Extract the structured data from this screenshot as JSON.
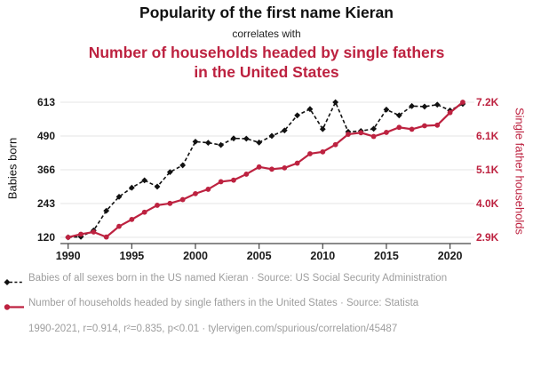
{
  "header": {
    "title_black": "Popularity of the first name Kieran",
    "connector": "correlates with",
    "title_red": "Number of households headed by single fathers in the United States"
  },
  "colors": {
    "red": "#bd2240",
    "black": "#111111",
    "gray_text": "#9e9e9e",
    "grid": "#e4e4e4",
    "axis": "#444444"
  },
  "chart_data": {
    "type": "line",
    "x_label_years": [
      "1990",
      "1995",
      "2000",
      "2005",
      "2010",
      "2015",
      "2020"
    ],
    "x": [
      1990,
      1991,
      1992,
      1993,
      1994,
      1995,
      1996,
      1997,
      1998,
      1999,
      2000,
      2001,
      2002,
      2003,
      2004,
      2005,
      2006,
      2007,
      2008,
      2009,
      2010,
      2011,
      2012,
      2013,
      2014,
      2015,
      2016,
      2017,
      2018,
      2019,
      2020,
      2021
    ],
    "series": [
      {
        "name": "Babies of all sexes born in the US named Kieran",
        "axis": "left",
        "style": "dashed-diamond",
        "color": "#111111",
        "values": [
          120,
          122,
          145,
          217,
          268,
          301,
          328,
          305,
          358,
          383,
          469,
          465,
          457,
          481,
          480,
          466,
          490,
          510,
          565,
          588,
          515,
          613,
          505,
          508,
          516,
          586,
          565,
          599,
          597,
          604,
          583,
          607
        ]
      },
      {
        "name": "Number of households headed by single fathers in the United States",
        "axis": "right",
        "style": "solid-circle",
        "color": "#bd2240",
        "values": [
          2900,
          3000,
          3070,
          2910,
          3250,
          3470,
          3700,
          3920,
          3980,
          4100,
          4290,
          4430,
          4670,
          4720,
          4910,
          5140,
          5070,
          5110,
          5260,
          5560,
          5620,
          5850,
          6180,
          6230,
          6110,
          6240,
          6400,
          6340,
          6450,
          6470,
          6870,
          7200
        ]
      }
    ],
    "left_axis": {
      "label": "Babies born",
      "tick_labels": [
        "120",
        "243",
        "366",
        "490",
        "613"
      ],
      "range": [
        120,
        613
      ]
    },
    "right_axis": {
      "label": "Single father households",
      "tick_labels": [
        "2.9K",
        "4.0K",
        "5.1K",
        "6.1K",
        "7.2K"
      ],
      "range": [
        2900,
        7200
      ]
    },
    "x_axis": {
      "ticks": [
        1990,
        1995,
        2000,
        2005,
        2010,
        2015,
        2020
      ],
      "range": [
        1990,
        2021
      ]
    },
    "grid": true,
    "legend_position": "bottom"
  },
  "legend": {
    "items": [
      {
        "text": "Babies of all sexes born in the US named Kieran · Source: US Social Security Administration"
      },
      {
        "text": "Number of households headed by single fathers in the United States · Source: Statista"
      }
    ]
  },
  "footer": "1990-2021, r=0.914, r²=0.835, p<0.01 · tylervigen.com/spurious/correlation/45487"
}
